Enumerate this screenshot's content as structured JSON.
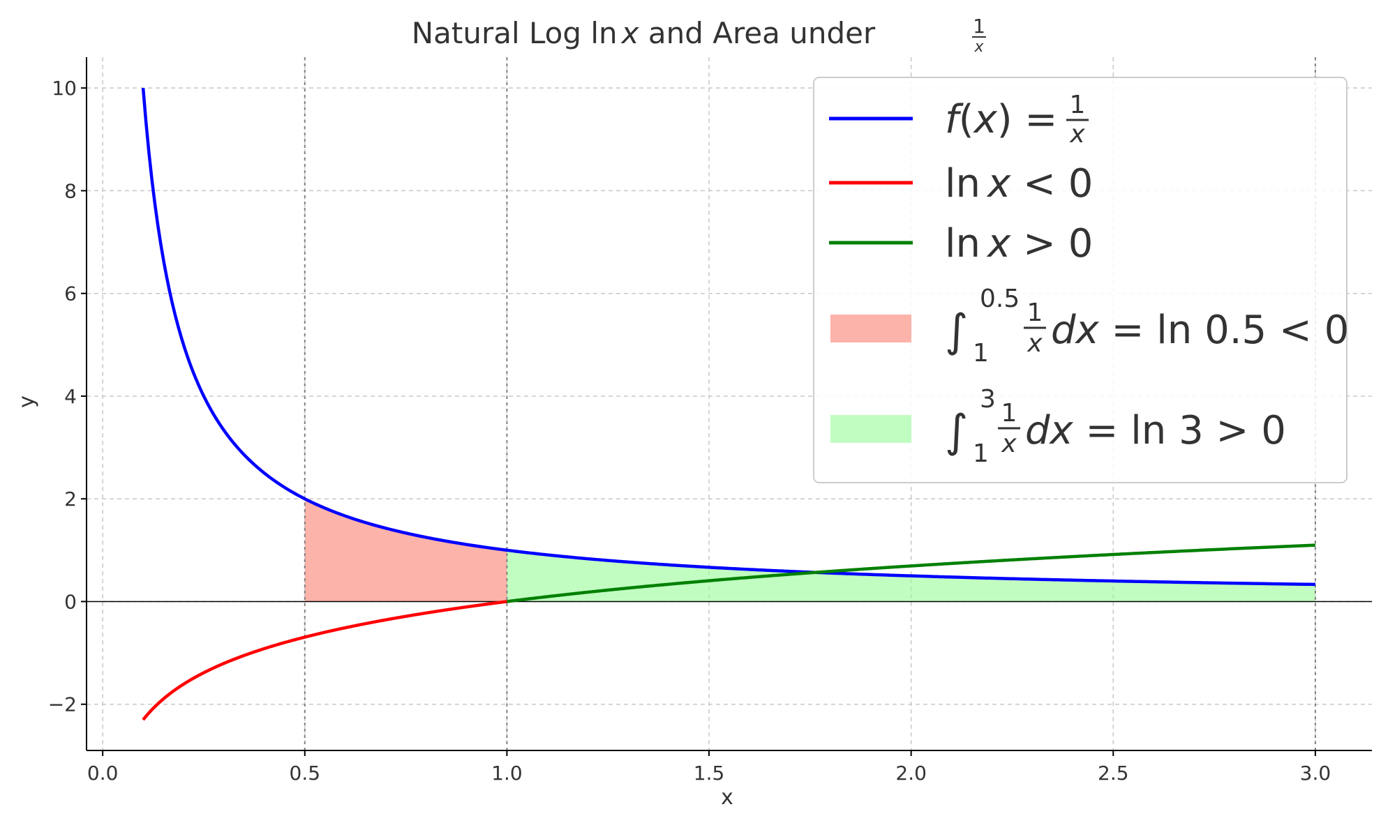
{
  "chart_data": {
    "type": "line",
    "title": {
      "prefix": "Natural Log ",
      "ln": "ln",
      "var": "x",
      "suffix": " and Area under ",
      "frac_num": "1",
      "frac_den": "x"
    },
    "xlabel": "x",
    "ylabel": "y",
    "xlim": [
      -0.04,
      3.14
    ],
    "ylim": [
      -2.9,
      10.6
    ],
    "xticks": [
      0.0,
      0.5,
      1.0,
      1.5,
      2.0,
      2.5,
      3.0
    ],
    "xtick_labels": [
      "0.0",
      "0.5",
      "1.0",
      "1.5",
      "2.0",
      "2.5",
      "3.0"
    ],
    "yticks": [
      -2,
      0,
      2,
      4,
      6,
      8,
      10
    ],
    "ytick_labels": [
      "−2",
      "0",
      "2",
      "4",
      "6",
      "8",
      "10"
    ],
    "grid": true,
    "vertical_markers": [
      0.5,
      1.0,
      3.0
    ],
    "series": [
      {
        "name": "f(x) = 1/x",
        "function": "1/x",
        "x_range": [
          0.1,
          3.0
        ],
        "color": "#0000ff"
      },
      {
        "name": "ln x < 0",
        "function": "ln(x)",
        "x_range": [
          0.1,
          1.0
        ],
        "color": "#ff0000"
      },
      {
        "name": "ln x > 0",
        "function": "ln(x)",
        "x_range": [
          1.0,
          3.0
        ],
        "color": "#008000"
      }
    ],
    "areas": [
      {
        "name": "∫_1^0.5 (1/x) dx = ln 0.5 < 0",
        "under": "1/x",
        "x_range": [
          0.5,
          1.0
        ],
        "color": "#fa8072"
      },
      {
        "name": "∫_1^3 (1/x) dx = ln 3 > 0",
        "under": "1/x",
        "x_range": [
          1.0,
          3.0
        ],
        "color": "#98fb98"
      }
    ],
    "legend_placement": "upper right",
    "legend": {
      "f_label": {
        "f": "f",
        "open": "(",
        "x": "x",
        "close_eq": ") = ",
        "num": "1",
        "den": "x"
      },
      "ln_neg": {
        "ln": "ln",
        "x": "x",
        "rest": " < 0"
      },
      "ln_pos": {
        "ln": "ln",
        "x": "x",
        "rest": " > 0"
      },
      "area_neg": {
        "int": "∫",
        "upper": "0.5",
        "lower": "1",
        "num": "1",
        "den": "x",
        "dx": "dx",
        "eq": " = ln 0.5 < 0"
      },
      "area_pos": {
        "int": "∫",
        "upper": "3",
        "lower": "1",
        "num": "1",
        "den": "x",
        "dx": "dx",
        "eq": " = ln 3 > 0"
      }
    }
  }
}
